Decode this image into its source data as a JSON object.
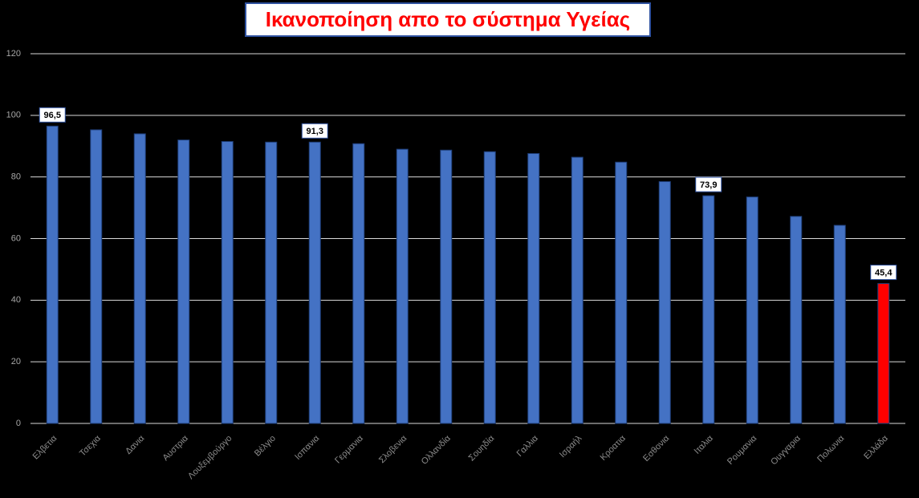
{
  "chart_data": {
    "type": "bar",
    "title": "Ικανοποίηση απο το σύστημα Υγείας",
    "categories": [
      "Ελβετια",
      "Τσεχια",
      "Δανια",
      "Αυστρια",
      "Λουξεμβούργο",
      "Βέλγιο",
      "Ισπανια",
      "Γερμανια",
      "Σλοβενια",
      "Ολλανδία",
      "Σουηδία",
      "Γαλλια",
      "Ισραήλ",
      "Κροατια",
      "Εσθονια",
      "Ιταλια",
      "Ρουμανια",
      "Ουγγαρια",
      "Πολωνια",
      "Ελλάδα"
    ],
    "values": [
      96.5,
      95.3,
      94,
      92,
      91.5,
      91.3,
      91.3,
      90.8,
      89,
      88.7,
      88.2,
      87.6,
      86.4,
      84.8,
      78.5,
      73.9,
      73.5,
      67.2,
      64.3,
      45.4
    ],
    "value_labels": [
      "96,5",
      null,
      null,
      null,
      null,
      null,
      "91,3",
      null,
      null,
      null,
      null,
      null,
      null,
      null,
      null,
      "73,9",
      null,
      null,
      null,
      "45,4"
    ],
    "colors": [
      "#4472c4",
      "#4472c4",
      "#4472c4",
      "#4472c4",
      "#4472c4",
      "#4472c4",
      "#4472c4",
      "#4472c4",
      "#4472c4",
      "#4472c4",
      "#4472c4",
      "#4472c4",
      "#4472c4",
      "#4472c4",
      "#4472c4",
      "#4472c4",
      "#4472c4",
      "#4472c4",
      "#4472c4",
      "#ff0000"
    ],
    "ylim": [
      0,
      120
    ],
    "yticks": [
      0,
      20,
      40,
      60,
      80,
      100,
      120
    ],
    "grid": true
  }
}
